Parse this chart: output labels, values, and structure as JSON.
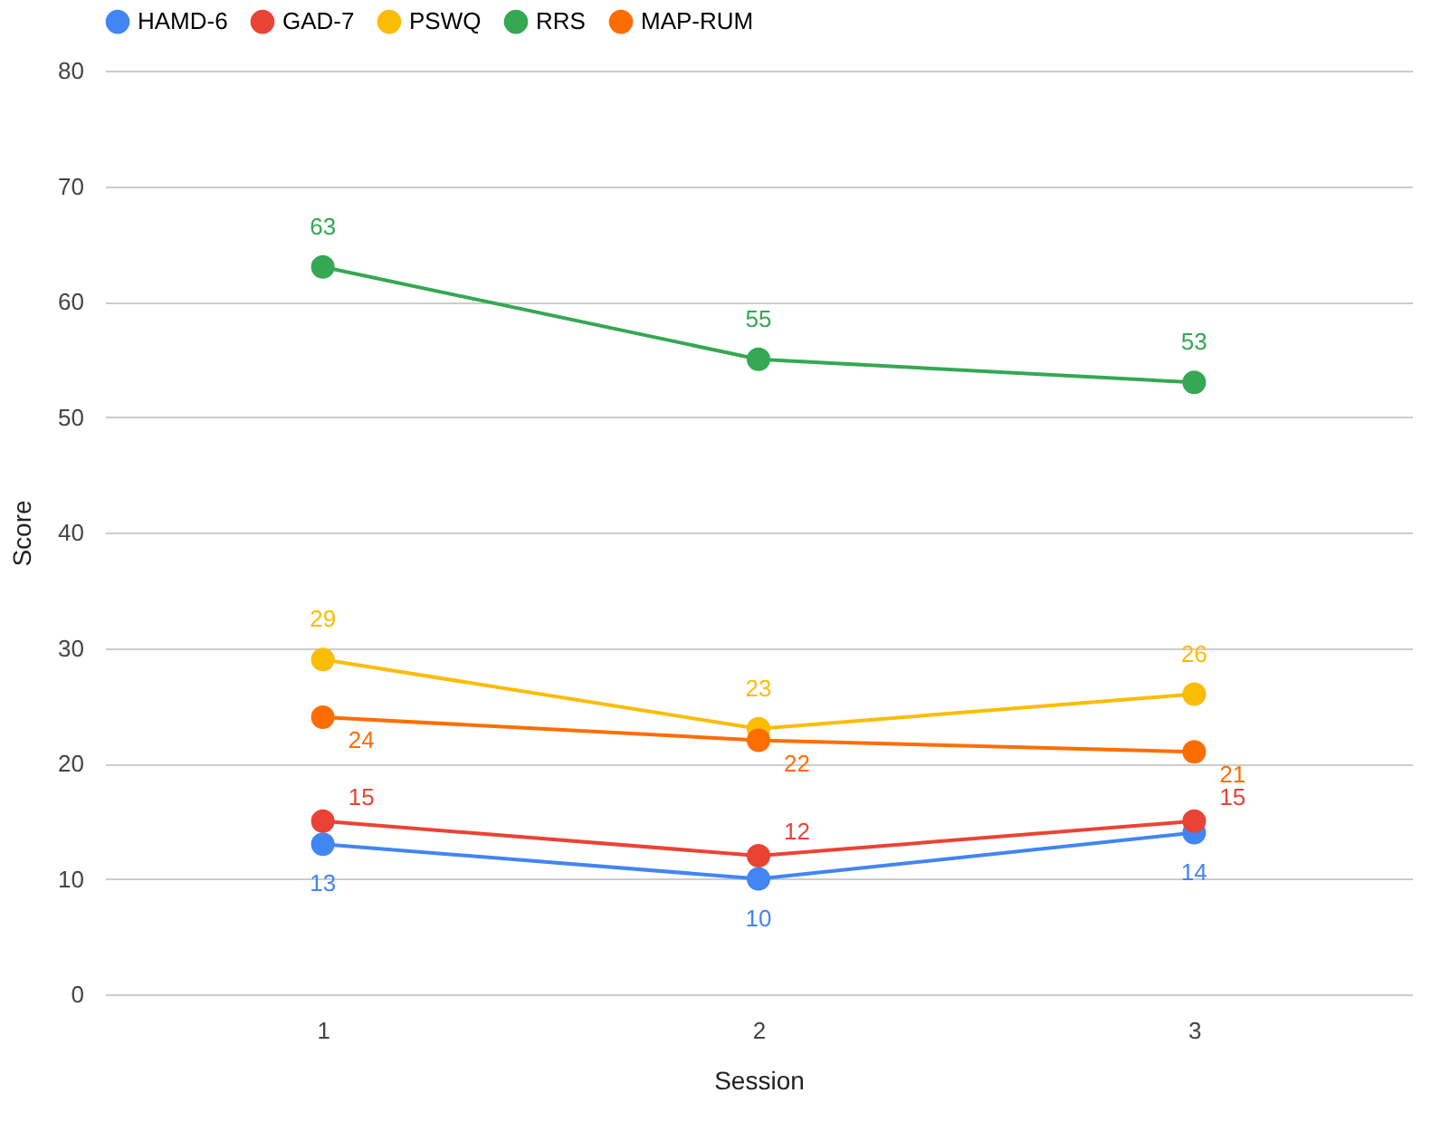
{
  "chart_data": {
    "type": "line",
    "xlabel": "Session",
    "ylabel": "Score",
    "categories": [
      "1",
      "2",
      "3"
    ],
    "series": [
      {
        "name": "HAMD-6",
        "color": "#4285f4",
        "values": [
          13,
          10,
          14
        ]
      },
      {
        "name": "GAD-7",
        "color": "#ea4335",
        "values": [
          15,
          12,
          15
        ]
      },
      {
        "name": "PSWQ",
        "color": "#fbbc04",
        "values": [
          29,
          23,
          26
        ]
      },
      {
        "name": "RRS",
        "color": "#34a853",
        "values": [
          63,
          55,
          53
        ]
      },
      {
        "name": "MAP-RUM",
        "color": "#ff6d01",
        "values": [
          24,
          22,
          21
        ]
      }
    ],
    "ylim": [
      0,
      80
    ],
    "yticks": [
      0,
      10,
      20,
      30,
      40,
      50,
      60,
      70,
      80
    ],
    "grid": "y",
    "legend": "top",
    "marker": "circle",
    "line_style": "solid",
    "data_labels": true
  }
}
